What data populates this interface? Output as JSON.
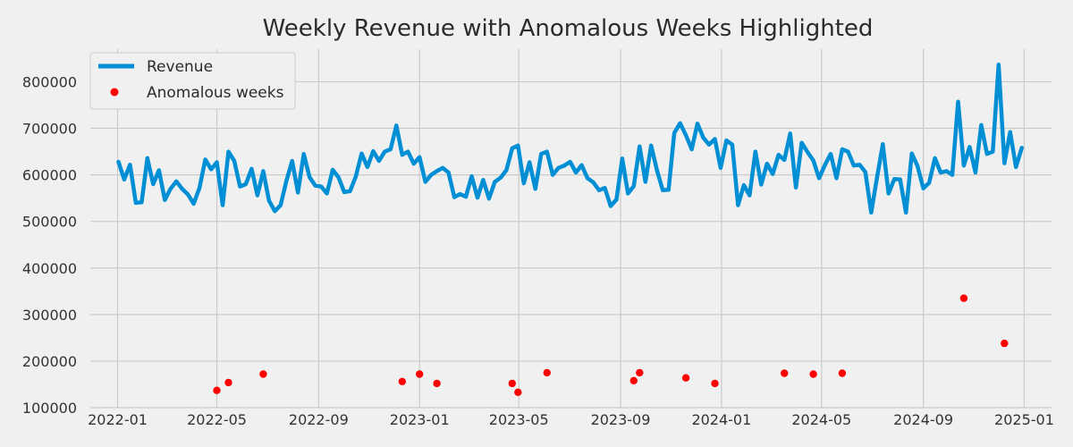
{
  "chart_data": {
    "type": "line",
    "title": "Weekly Revenue with Anomalous Weeks Highlighted",
    "xlabel": "",
    "ylabel": "",
    "xlim": [
      "2021-11-29",
      "2025-02-03"
    ],
    "ylim": [
      100000,
      870000
    ],
    "x_ticks": [
      "2022-01",
      "2022-05",
      "2022-09",
      "2023-01",
      "2023-05",
      "2023-09",
      "2024-01",
      "2024-05",
      "2024-09",
      "2025-01"
    ],
    "y_ticks": [
      100000,
      200000,
      300000,
      400000,
      500000,
      600000,
      700000,
      800000
    ],
    "grid": true,
    "legend": "top-left",
    "series": [
      {
        "name": "Revenue",
        "kind": "line",
        "color": "#008fd5",
        "start": "2022-01-02",
        "step_days": 7,
        "values": [
          628000,
          590000,
          622000,
          540000,
          541000,
          636000,
          580000,
          610000,
          546000,
          570000,
          586000,
          570000,
          558000,
          538000,
          572000,
          633000,
          612000,
          627000,
          535000,
          650000,
          630000,
          575000,
          580000,
          613000,
          556000,
          608000,
          545000,
          522000,
          535000,
          587000,
          630000,
          562000,
          645000,
          595000,
          577000,
          575000,
          560000,
          611000,
          595000,
          563000,
          565000,
          597000,
          646000,
          617000,
          651000,
          630000,
          650000,
          655000,
          706000,
          643000,
          650000,
          624000,
          638000,
          585000,
          600000,
          608000,
          615000,
          605000,
          552000,
          559000,
          553000,
          597000,
          551000,
          589000,
          549000,
          585000,
          594000,
          610000,
          657000,
          663000,
          582000,
          627000,
          570000,
          645000,
          650000,
          600000,
          615000,
          620000,
          628000,
          605000,
          621000,
          593000,
          584000,
          567000,
          572000,
          533000,
          547000,
          635000,
          560000,
          576000,
          661000,
          585000,
          663000,
          610000,
          567000,
          568000,
          690000,
          711000,
          685000,
          655000,
          710000,
          680000,
          665000,
          677000,
          615000,
          674000,
          665000,
          535000,
          578000,
          556000,
          650000,
          579000,
          624000,
          602000,
          643000,
          632000,
          689000,
          573000,
          669000,
          649000,
          631000,
          593000,
          621000,
          645000,
          593000,
          655000,
          650000,
          620000,
          622000,
          606000,
          519000,
          594000,
          666000,
          560000,
          591000,
          590000,
          519000,
          646000,
          619000,
          571000,
          583000,
          636000,
          605000,
          608000,
          600000,
          757000,
          620000,
          660000,
          605000,
          707000,
          645000,
          650000,
          837000,
          625000,
          692000,
          617000,
          658000
        ]
      },
      {
        "name": "Anomalous weeks",
        "kind": "scatter",
        "color": "#ff0000",
        "points": [
          {
            "x": "2022-05-01",
            "y": 137000
          },
          {
            "x": "2022-05-15",
            "y": 154000
          },
          {
            "x": "2022-06-26",
            "y": 172000
          },
          {
            "x": "2022-12-11",
            "y": 156000
          },
          {
            "x": "2023-01-01",
            "y": 172000
          },
          {
            "x": "2023-01-22",
            "y": 152000
          },
          {
            "x": "2023-04-23",
            "y": 152000
          },
          {
            "x": "2023-04-30",
            "y": 133000
          },
          {
            "x": "2023-06-04",
            "y": 175000
          },
          {
            "x": "2023-09-17",
            "y": 158000
          },
          {
            "x": "2023-09-24",
            "y": 175000
          },
          {
            "x": "2023-11-19",
            "y": 164000
          },
          {
            "x": "2023-12-24",
            "y": 152000
          },
          {
            "x": "2024-03-17",
            "y": 174000
          },
          {
            "x": "2024-04-21",
            "y": 172000
          },
          {
            "x": "2024-05-26",
            "y": 174000
          },
          {
            "x": "2024-10-20",
            "y": 335000
          },
          {
            "x": "2024-12-08",
            "y": 238000
          }
        ]
      }
    ]
  }
}
